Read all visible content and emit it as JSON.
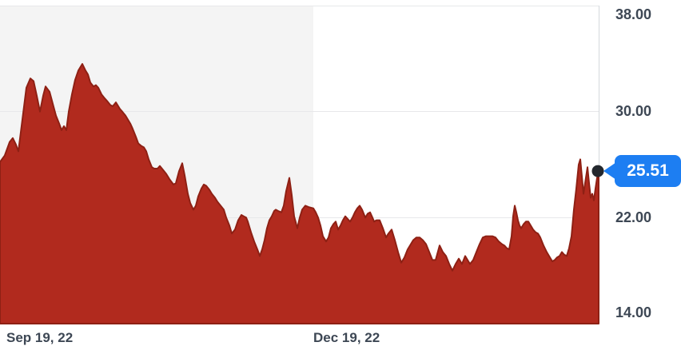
{
  "chart": {
    "y_axis_labels": [
      "38.00",
      "30.00",
      "22.00",
      "14.00"
    ],
    "x_axis_labels": [
      "Sep 19, 22",
      "Dec 19, 22"
    ],
    "price_badge": "25.51"
  },
  "colors": {
    "area_fill": "#b12a1e",
    "area_stroke": "#8e2014",
    "badge_blue": "#1d7ef2",
    "marker_dot": "#23272d",
    "period_band": "#f4f4f4",
    "gridline": "#e7e8ea",
    "axis_line": "#d5d9dd",
    "label_text": "#3d4754"
  },
  "chart_data": {
    "type": "area",
    "title": "",
    "xlabel": "",
    "ylabel": "",
    "ylim": [
      14,
      38
    ],
    "y_ticks": [
      38.0,
      30.0,
      22.0,
      14.0
    ],
    "x_ticks": [
      {
        "label": "Sep 19, 22",
        "x": 8
      },
      {
        "label": "Dec 19, 22",
        "x": 392
      }
    ],
    "x_unit": "plot pixels, 0-749 spanning Sep 2022 to Mar 2023",
    "grid": "horizontal",
    "legend": "none",
    "shaded_period": {
      "x_start": 0,
      "x_end": 392
    },
    "last_price": 25.51,
    "points": [
      [
        0,
        26.2
      ],
      [
        6,
        26.7
      ],
      [
        12,
        27.7
      ],
      [
        16,
        28.0
      ],
      [
        20,
        27.5
      ],
      [
        23,
        27.0
      ],
      [
        28,
        29.4
      ],
      [
        33,
        31.8
      ],
      [
        38,
        32.5
      ],
      [
        42,
        32.3
      ],
      [
        46,
        31.2
      ],
      [
        50,
        30.0
      ],
      [
        54,
        31.2
      ],
      [
        57,
        31.9
      ],
      [
        62,
        31.5
      ],
      [
        66,
        30.6
      ],
      [
        70,
        29.7
      ],
      [
        74,
        29.1
      ],
      [
        77,
        28.6
      ],
      [
        80,
        28.9
      ],
      [
        83,
        28.6
      ],
      [
        86,
        30.0
      ],
      [
        90,
        31.3
      ],
      [
        94,
        32.4
      ],
      [
        98,
        33.1
      ],
      [
        103,
        33.6
      ],
      [
        107,
        33.1
      ],
      [
        110,
        32.8
      ],
      [
        113,
        32.2
      ],
      [
        117,
        31.9
      ],
      [
        120,
        32.0
      ],
      [
        123,
        31.8
      ],
      [
        127,
        31.3
      ],
      [
        131,
        31.0
      ],
      [
        134,
        30.8
      ],
      [
        138,
        30.5
      ],
      [
        141,
        30.4
      ],
      [
        145,
        30.7
      ],
      [
        150,
        30.2
      ],
      [
        153,
        30.0
      ],
      [
        157,
        29.7
      ],
      [
        160,
        29.4
      ],
      [
        163,
        29.1
      ],
      [
        166,
        28.7
      ],
      [
        170,
        28.1
      ],
      [
        173,
        27.6
      ],
      [
        177,
        27.4
      ],
      [
        180,
        27.3
      ],
      [
        183,
        27.0
      ],
      [
        186,
        26.4
      ],
      [
        190,
        25.8
      ],
      [
        193,
        25.7
      ],
      [
        197,
        25.7
      ],
      [
        200,
        25.9
      ],
      [
        204,
        25.6
      ],
      [
        208,
        25.3
      ],
      [
        212,
        24.9
      ],
      [
        217,
        24.5
      ],
      [
        220,
        24.6
      ],
      [
        224,
        25.5
      ],
      [
        228,
        26.1
      ],
      [
        231,
        25.2
      ],
      [
        235,
        23.8
      ],
      [
        238,
        23.1
      ],
      [
        242,
        22.6
      ],
      [
        245,
        22.9
      ],
      [
        248,
        23.6
      ],
      [
        252,
        24.2
      ],
      [
        255,
        24.5
      ],
      [
        258,
        24.4
      ],
      [
        262,
        24.1
      ],
      [
        265,
        23.8
      ],
      [
        269,
        23.5
      ],
      [
        272,
        23.2
      ],
      [
        276,
        22.9
      ],
      [
        280,
        22.6
      ],
      [
        283,
        22.0
      ],
      [
        287,
        21.4
      ],
      [
        290,
        20.8
      ],
      [
        294,
        21.1
      ],
      [
        298,
        21.8
      ],
      [
        302,
        22.2
      ],
      [
        305,
        22.1
      ],
      [
        308,
        22.0
      ],
      [
        310,
        21.7
      ],
      [
        314,
        20.9
      ],
      [
        318,
        20.2
      ],
      [
        322,
        19.6
      ],
      [
        325,
        19.1
      ],
      [
        328,
        19.6
      ],
      [
        331,
        20.3
      ],
      [
        334,
        21.2
      ],
      [
        337,
        21.8
      ],
      [
        340,
        22.1
      ],
      [
        343,
        22.5
      ],
      [
        345,
        22.6
      ],
      [
        348,
        22.5
      ],
      [
        352,
        22.4
      ],
      [
        355,
        22.9
      ],
      [
        358,
        24.0
      ],
      [
        362,
        25.0
      ],
      [
        365,
        23.7
      ],
      [
        368,
        22.1
      ],
      [
        372,
        21.2
      ],
      [
        375,
        22.0
      ],
      [
        378,
        22.6
      ],
      [
        382,
        22.9
      ],
      [
        386,
        22.8
      ],
      [
        392,
        22.7
      ],
      [
        395,
        22.4
      ],
      [
        398,
        22.0
      ],
      [
        401,
        21.4
      ],
      [
        404,
        20.6
      ],
      [
        408,
        20.2
      ],
      [
        411,
        20.5
      ],
      [
        414,
        21.2
      ],
      [
        417,
        21.5
      ],
      [
        420,
        21.7
      ],
      [
        423,
        21.1
      ],
      [
        426,
        21.4
      ],
      [
        429,
        21.8
      ],
      [
        432,
        22.1
      ],
      [
        435,
        21.9
      ],
      [
        438,
        21.7
      ],
      [
        441,
        22.0
      ],
      [
        444,
        22.4
      ],
      [
        447,
        22.7
      ],
      [
        450,
        22.9
      ],
      [
        453,
        22.6
      ],
      [
        457,
        22.0
      ],
      [
        460,
        22.3
      ],
      [
        463,
        22.4
      ],
      [
        466,
        22.0
      ],
      [
        468,
        21.7
      ],
      [
        471,
        21.8
      ],
      [
        475,
        21.8
      ],
      [
        479,
        21.2
      ],
      [
        483,
        20.5
      ],
      [
        486,
        20.8
      ],
      [
        490,
        21.1
      ],
      [
        494,
        20.3
      ],
      [
        498,
        19.4
      ],
      [
        502,
        18.6
      ],
      [
        506,
        19.0
      ],
      [
        510,
        19.6
      ],
      [
        514,
        20.0
      ],
      [
        517,
        20.3
      ],
      [
        521,
        20.5
      ],
      [
        525,
        20.5
      ],
      [
        529,
        20.3
      ],
      [
        533,
        20.0
      ],
      [
        537,
        19.4
      ],
      [
        541,
        18.8
      ],
      [
        545,
        18.8
      ],
      [
        550,
        19.9
      ],
      [
        554,
        19.4
      ],
      [
        558,
        19.1
      ],
      [
        562,
        18.5
      ],
      [
        566,
        18.0
      ],
      [
        570,
        18.5
      ],
      [
        574,
        18.9
      ],
      [
        578,
        18.5
      ],
      [
        582,
        19.1
      ],
      [
        585,
        18.8
      ],
      [
        588,
        18.5
      ],
      [
        592,
        18.8
      ],
      [
        596,
        19.4
      ],
      [
        600,
        20.0
      ],
      [
        604,
        20.5
      ],
      [
        608,
        20.6
      ],
      [
        612,
        20.6
      ],
      [
        616,
        20.6
      ],
      [
        620,
        20.5
      ],
      [
        624,
        20.2
      ],
      [
        628,
        20.0
      ],
      [
        631,
        19.9
      ],
      [
        634,
        19.7
      ],
      [
        637,
        19.6
      ],
      [
        640,
        20.6
      ],
      [
        642,
        22.1
      ],
      [
        644,
        22.9
      ],
      [
        646,
        22.4
      ],
      [
        648,
        21.8
      ],
      [
        650,
        21.4
      ],
      [
        652,
        21.2
      ],
      [
        655,
        21.5
      ],
      [
        658,
        21.7
      ],
      [
        661,
        21.7
      ],
      [
        664,
        21.4
      ],
      [
        667,
        21.1
      ],
      [
        670,
        20.9
      ],
      [
        673,
        20.8
      ],
      [
        676,
        20.5
      ],
      [
        680,
        19.9
      ],
      [
        684,
        19.4
      ],
      [
        688,
        19.0
      ],
      [
        691,
        18.7
      ],
      [
        694,
        18.8
      ],
      [
        697,
        19.0
      ],
      [
        700,
        19.1
      ],
      [
        703,
        19.4
      ],
      [
        706,
        19.2
      ],
      [
        709,
        19.1
      ],
      [
        712,
        19.7
      ],
      [
        715,
        20.6
      ],
      [
        718,
        22.6
      ],
      [
        721,
        24.2
      ],
      [
        724,
        26.0
      ],
      [
        726,
        26.4
      ],
      [
        728,
        25.1
      ],
      [
        730,
        23.8
      ],
      [
        732,
        24.6
      ],
      [
        734,
        25.4
      ],
      [
        735,
        25.8
      ],
      [
        737,
        24.6
      ],
      [
        739,
        23.5
      ],
      [
        741,
        23.8
      ],
      [
        743,
        23.3
      ],
      [
        745,
        24.2
      ],
      [
        747,
        25.0
      ],
      [
        749,
        25.51
      ]
    ]
  }
}
